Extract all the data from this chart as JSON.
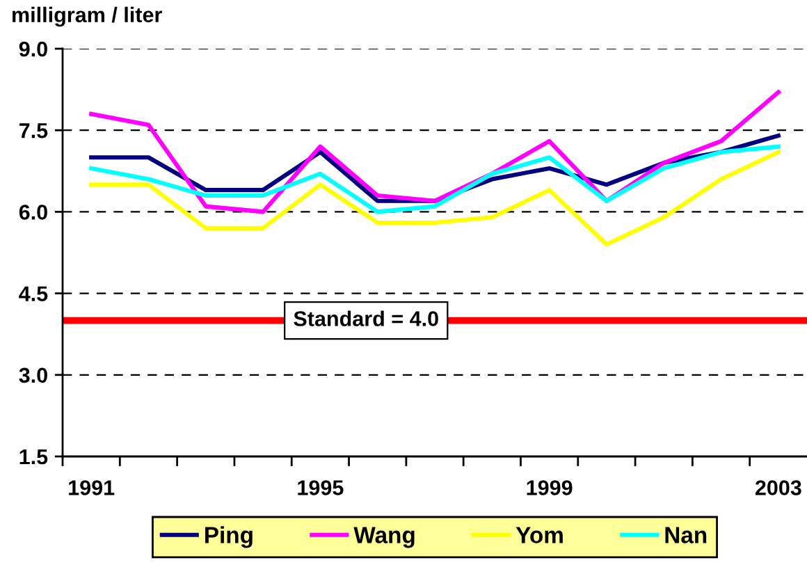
{
  "chart_data": {
    "type": "line",
    "ylabel": "milligram / liter",
    "categories": [
      "1991",
      null,
      null,
      null,
      "1995",
      null,
      null,
      null,
      "1999",
      null,
      null,
      null,
      "2003"
    ],
    "series": [
      {
        "name": "Ping",
        "color": "#000080",
        "values": [
          7.0,
          7.0,
          6.4,
          6.4,
          7.1,
          6.2,
          6.2,
          6.6,
          6.8,
          6.5,
          6.9,
          7.1,
          7.4
        ]
      },
      {
        "name": "Wang",
        "color": "#ff00ff",
        "values": [
          7.8,
          7.6,
          6.1,
          6.0,
          7.2,
          6.3,
          6.2,
          6.7,
          7.3,
          6.2,
          6.9,
          7.3,
          8.2
        ]
      },
      {
        "name": "Yom",
        "color": "#ffff00",
        "values": [
          6.5,
          6.5,
          5.7,
          5.7,
          6.5,
          5.8,
          5.8,
          5.9,
          6.4,
          5.4,
          5.9,
          6.6,
          7.1
        ]
      },
      {
        "name": "Nan",
        "color": "#00ffff",
        "values": [
          6.8,
          6.6,
          6.3,
          6.3,
          6.7,
          6.0,
          6.1,
          6.7,
          7.0,
          6.2,
          6.8,
          7.1,
          7.2
        ]
      }
    ],
    "ylim": [
      1.5,
      9.0
    ],
    "yticks": [
      {
        "value": 1.5,
        "label": "1.5"
      },
      {
        "value": 3.0,
        "label": "3.0"
      },
      {
        "value": 4.5,
        "label": "4.5"
      },
      {
        "value": 6.0,
        "label": "6.0"
      },
      {
        "value": 7.5,
        "label": "7.5"
      },
      {
        "value": 9.0,
        "label": "9.0"
      }
    ],
    "ref_lines": [
      {
        "axis": "y",
        "value": 4.0,
        "label": "Standard = 4.0",
        "color": "#ff0000"
      }
    ],
    "grid": "y",
    "legend": "bottom",
    "marker": "none",
    "line_style": "solid"
  }
}
